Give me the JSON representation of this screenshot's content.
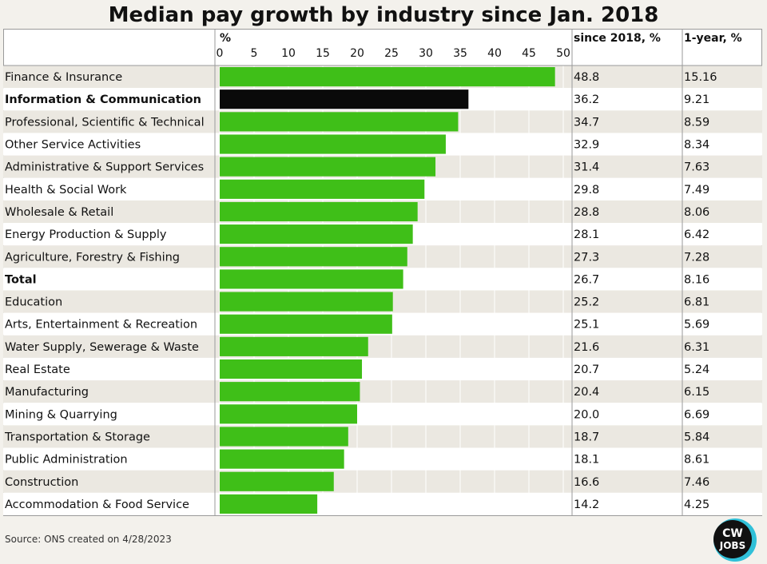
{
  "title": "Median pay growth by industry since Jan. 2018",
  "source": "Source: ONS created on 4/28/2023",
  "logo_text": "CW JOBS",
  "columns": {
    "since": "since 2018, %",
    "year": "1-year, %"
  },
  "colors": {
    "bar": "#3fbf18",
    "highlight_bar": "#0a0a0a",
    "row_alt": "#ebe8e1",
    "grid": "#ffffff"
  },
  "chart_data": {
    "type": "bar",
    "orientation": "horizontal",
    "title": "Median pay growth by industry since Jan. 2018",
    "xlabel": "%",
    "xlim": [
      0,
      50
    ],
    "xticks": [
      0,
      5,
      10,
      15,
      20,
      25,
      30,
      35,
      40,
      45,
      50
    ],
    "categories": [
      "Finance & Insurance",
      "Information & Communication",
      "Professional, Scientific & Technical",
      "Other Service Activities",
      "Administrative & Support Services",
      "Health & Social Work",
      "Wholesale & Retail",
      "Energy Production & Supply",
      "Agriculture, Forestry & Fishing",
      "Total",
      "Education",
      "Arts, Entertainment & Recreation",
      "Water Supply, Sewerage & Waste",
      "Real Estate",
      "Manufacturing",
      "Mining & Quarrying",
      "Transportation & Storage",
      "Public Administration",
      "Construction",
      "Accommodation & Food Service"
    ],
    "values": [
      48.8,
      36.2,
      34.7,
      32.9,
      31.4,
      29.8,
      28.8,
      28.1,
      27.3,
      26.7,
      25.2,
      25.1,
      21.6,
      20.7,
      20.4,
      20.0,
      18.7,
      18.1,
      16.6,
      14.2
    ],
    "value_labels": [
      "48.8",
      "36.2",
      "34.7",
      "32.9",
      "31.4",
      "29.8",
      "28.8",
      "28.1",
      "27.3",
      "26.7",
      "25.2",
      "25.1",
      "21.6",
      "20.7",
      "20.4",
      "20.0",
      "18.7",
      "18.1",
      "16.6",
      "14.2"
    ],
    "one_year": [
      "15.16",
      "9.21",
      "8.59",
      "8.34",
      "7.63",
      "7.49",
      "8.06",
      "6.42",
      "7.28",
      "8.16",
      "6.81",
      "5.69",
      "6.31",
      "5.24",
      "6.15",
      "6.69",
      "5.84",
      "8.61",
      "7.46",
      "4.25"
    ],
    "bold_categories": [
      "Information & Communication",
      "Total"
    ],
    "highlighted_category": "Information & Communication",
    "grid": true
  }
}
